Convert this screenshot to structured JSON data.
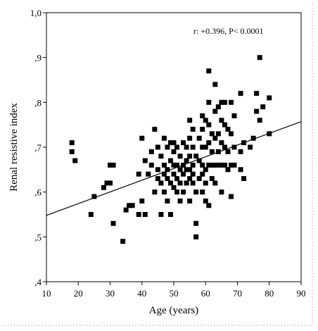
{
  "chart_data": {
    "type": "scatter",
    "title": "",
    "xlabel": "Age (years)",
    "ylabel": "Renal resistive index",
    "xlim": [
      10,
      90
    ],
    "ylim": [
      0.4,
      1.0
    ],
    "x_ticks": [
      "10",
      "20",
      "30",
      "40",
      "50",
      "60",
      "70",
      "80",
      "90"
    ],
    "y_ticks": [
      ",4",
      ",5",
      ",6",
      ",7",
      ",8",
      ",9",
      "1,0"
    ],
    "x_tick_values": [
      10,
      20,
      30,
      40,
      50,
      60,
      70,
      80,
      90
    ],
    "y_tick_values": [
      0.4,
      0.5,
      0.6,
      0.7,
      0.8,
      0.9,
      1.0
    ],
    "annotation": "r: +0.396, P< 0.0001",
    "grid": false,
    "marker_color": "#000000",
    "regression_line": {
      "x": [
        10,
        90
      ],
      "y": [
        0.548,
        0.757
      ]
    },
    "points": [
      [
        18,
        0.71
      ],
      [
        18,
        0.69
      ],
      [
        19,
        0.67
      ],
      [
        24,
        0.55
      ],
      [
        25,
        0.59
      ],
      [
        28,
        0.61
      ],
      [
        29,
        0.62
      ],
      [
        30,
        0.62
      ],
      [
        30,
        0.66
      ],
      [
        31,
        0.66
      ],
      [
        31,
        0.53
      ],
      [
        34,
        0.49
      ],
      [
        35,
        0.56
      ],
      [
        36,
        0.57
      ],
      [
        37,
        0.57
      ],
      [
        39,
        0.64
      ],
      [
        39,
        0.55
      ],
      [
        40,
        0.72
      ],
      [
        40,
        0.58
      ],
      [
        41,
        0.55
      ],
      [
        41,
        0.67
      ],
      [
        42,
        0.64
      ],
      [
        43,
        0.69
      ],
      [
        43,
        0.66
      ],
      [
        44,
        0.74
      ],
      [
        44,
        0.6
      ],
      [
        45,
        0.7
      ],
      [
        45,
        0.65
      ],
      [
        45,
        0.63
      ],
      [
        46,
        0.68
      ],
      [
        46,
        0.62
      ],
      [
        46,
        0.55
      ],
      [
        47,
        0.72
      ],
      [
        47,
        0.66
      ],
      [
        47,
        0.64
      ],
      [
        47,
        0.6
      ],
      [
        48,
        0.7
      ],
      [
        48,
        0.65
      ],
      [
        48,
        0.63
      ],
      [
        48,
        0.58
      ],
      [
        49,
        0.71
      ],
      [
        49,
        0.67
      ],
      [
        49,
        0.62
      ],
      [
        49,
        0.55
      ],
      [
        50,
        0.71
      ],
      [
        50,
        0.69
      ],
      [
        50,
        0.66
      ],
      [
        50,
        0.64
      ],
      [
        50,
        0.61
      ],
      [
        51,
        0.7
      ],
      [
        51,
        0.66
      ],
      [
        51,
        0.63
      ],
      [
        51,
        0.6
      ],
      [
        52,
        0.68
      ],
      [
        52,
        0.65
      ],
      [
        52,
        0.62
      ],
      [
        52,
        0.58
      ],
      [
        53,
        0.71
      ],
      [
        53,
        0.66
      ],
      [
        53,
        0.64
      ],
      [
        53,
        0.6
      ],
      [
        54,
        0.7
      ],
      [
        54,
        0.67
      ],
      [
        54,
        0.65
      ],
      [
        54,
        0.62
      ],
      [
        55,
        0.76
      ],
      [
        55,
        0.72
      ],
      [
        55,
        0.68
      ],
      [
        55,
        0.65
      ],
      [
        55,
        0.63
      ],
      [
        55,
        0.58
      ],
      [
        56,
        0.74
      ],
      [
        56,
        0.7
      ],
      [
        56,
        0.66
      ],
      [
        56,
        0.64
      ],
      [
        56,
        0.62
      ],
      [
        57,
        0.53
      ],
      [
        57,
        0.5
      ],
      [
        57,
        0.68
      ],
      [
        57,
        0.6
      ],
      [
        58,
        0.72
      ],
      [
        58,
        0.67
      ],
      [
        58,
        0.63
      ],
      [
        59,
        0.77
      ],
      [
        59,
        0.74
      ],
      [
        59,
        0.7
      ],
      [
        59,
        0.66
      ],
      [
        59,
        0.64
      ],
      [
        59,
        0.6
      ],
      [
        60,
        0.76
      ],
      [
        60,
        0.7
      ],
      [
        60,
        0.65
      ],
      [
        60,
        0.62
      ],
      [
        60,
        0.58
      ],
      [
        61,
        0.87
      ],
      [
        61,
        0.8
      ],
      [
        61,
        0.75
      ],
      [
        61,
        0.71
      ],
      [
        61,
        0.66
      ],
      [
        61,
        0.57
      ],
      [
        62,
        0.73
      ],
      [
        62,
        0.69
      ],
      [
        62,
        0.66
      ],
      [
        62,
        0.63
      ],
      [
        63,
        0.84
      ],
      [
        63,
        0.78
      ],
      [
        63,
        0.72
      ],
      [
        63,
        0.66
      ],
      [
        63,
        0.62
      ],
      [
        64,
        0.79
      ],
      [
        64,
        0.73
      ],
      [
        64,
        0.69
      ],
      [
        64,
        0.66
      ],
      [
        65,
        0.8
      ],
      [
        65,
        0.76
      ],
      [
        65,
        0.71
      ],
      [
        65,
        0.66
      ],
      [
        65,
        0.6
      ],
      [
        66,
        0.8
      ],
      [
        66,
        0.75
      ],
      [
        66,
        0.7
      ],
      [
        66,
        0.66
      ],
      [
        67,
        0.74
      ],
      [
        67,
        0.69
      ],
      [
        67,
        0.65
      ],
      [
        68,
        0.8
      ],
      [
        68,
        0.73
      ],
      [
        68,
        0.66
      ],
      [
        68,
        0.59
      ],
      [
        69,
        0.77
      ],
      [
        69,
        0.7
      ],
      [
        69,
        0.66
      ],
      [
        71,
        0.82
      ],
      [
        71,
        0.69
      ],
      [
        71,
        0.65
      ],
      [
        72,
        0.63
      ],
      [
        72,
        0.71
      ],
      [
        74,
        0.7
      ],
      [
        75,
        0.72
      ],
      [
        76,
        0.82
      ],
      [
        76,
        0.78
      ],
      [
        77,
        0.9
      ],
      [
        77,
        0.76
      ],
      [
        78,
        0.79
      ],
      [
        80,
        0.81
      ],
      [
        80,
        0.73
      ]
    ]
  }
}
